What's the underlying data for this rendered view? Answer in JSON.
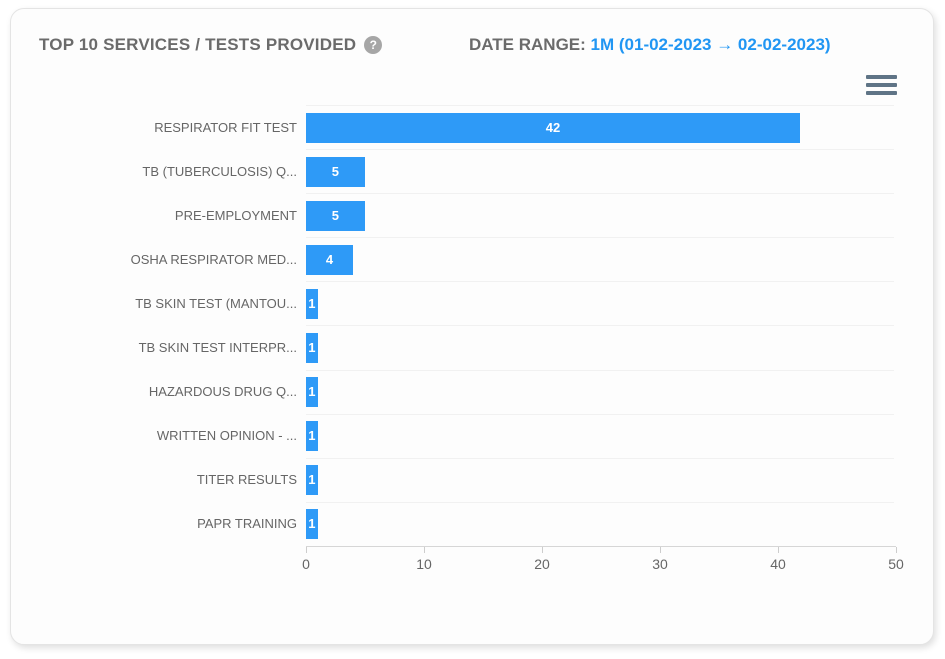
{
  "card": {
    "title": "TOP 10 SERVICES / TESTS PROVIDED",
    "help_icon_glyph": "?",
    "date_range_label": "DATE RANGE:",
    "date_range_value": "1M (01-02-2023 → 02-02-2023)"
  },
  "icons": {
    "help": "question-mark-circle",
    "menu": "hamburger-menu"
  },
  "colors": {
    "bar": "#2e9af7",
    "date_range_text": "#2196f3",
    "title_text": "#6b6b6b",
    "axis_text": "#666666",
    "value_label_text": "#ffffff"
  },
  "chart_data": {
    "type": "bar",
    "orientation": "horizontal",
    "title": "TOP 10 SERVICES / TESTS PROVIDED",
    "categories": [
      "RESPIRATOR FIT TEST",
      "TB (TUBERCULOSIS) Q...",
      "PRE-EMPLOYMENT",
      "OSHA RESPIRATOR MED...",
      "TB SKIN TEST (MANTOU...",
      "TB SKIN TEST INTERPR...",
      "HAZARDOUS DRUG Q...",
      "WRITTEN OPINION - ...",
      "TITER RESULTS",
      "PAPR TRAINING"
    ],
    "values": [
      42,
      5,
      5,
      4,
      1,
      1,
      1,
      1,
      1,
      1
    ],
    "xlabel": "",
    "ylabel": "",
    "xlim": [
      0,
      50
    ],
    "xticks": [
      0,
      10,
      20,
      30,
      40,
      50
    ],
    "grid": true,
    "legend": false,
    "value_labels_inside_bars": true
  }
}
